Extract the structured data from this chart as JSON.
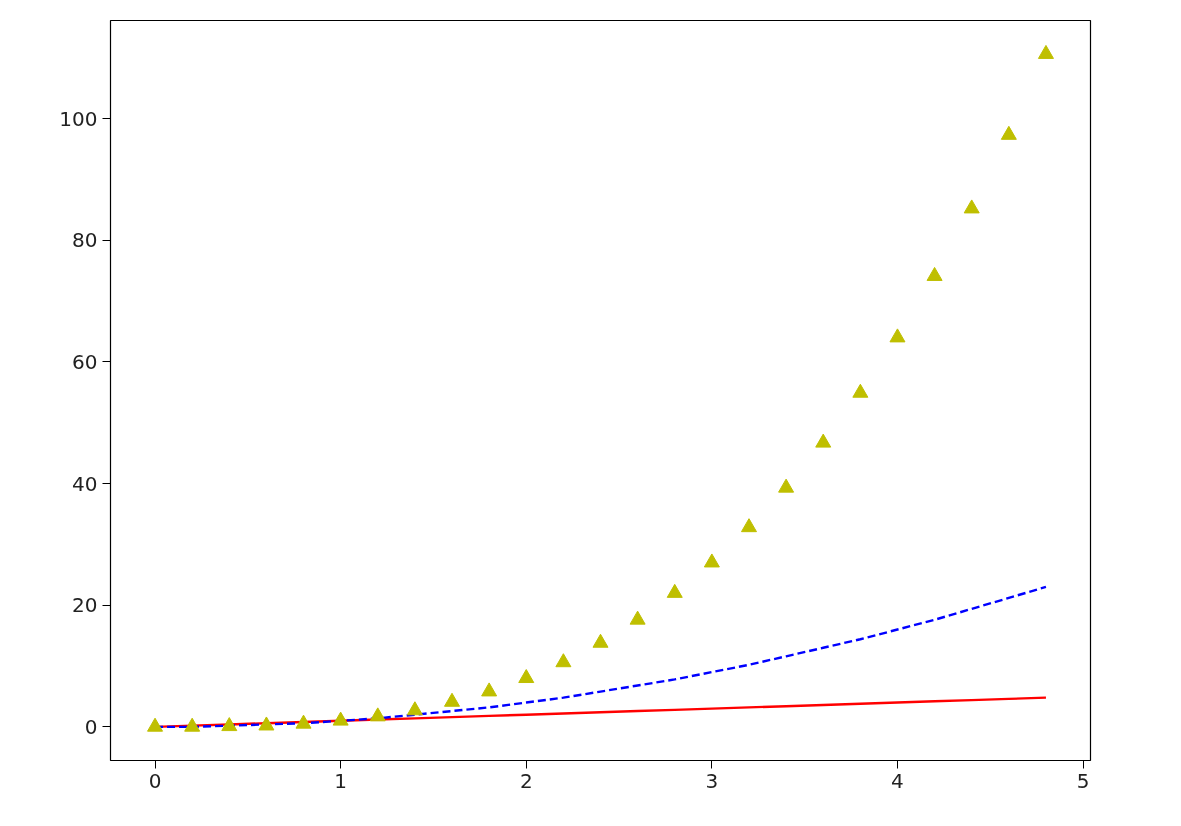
{
  "chart_data": {
    "type": "line",
    "x": [
      0,
      0.2,
      0.4,
      0.6,
      0.8,
      1,
      1.2,
      1.4,
      1.6,
      1.8,
      2,
      2.2,
      2.4,
      2.6,
      2.8,
      3,
      3.2,
      3.4,
      3.6,
      3.8,
      4,
      4.2,
      4.4,
      4.6,
      4.8
    ],
    "series": [
      {
        "color": "#ff0000",
        "line_style": "solid",
        "values": [
          0,
          0.2,
          0.4,
          0.6,
          0.8,
          1,
          1.2,
          1.4,
          1.6,
          1.8,
          2,
          2.2,
          2.4,
          2.6,
          2.8,
          3,
          3.2,
          3.4,
          3.6,
          3.8,
          4,
          4.2,
          4.4,
          4.6,
          4.8
        ]
      },
      {
        "color": "#0000ff",
        "line_style": "dashed",
        "values": [
          0,
          0,
          0.2,
          0.4,
          0.6,
          1,
          1.4,
          2,
          2.6,
          3.2,
          4,
          4.8,
          5.8,
          6.8,
          7.8,
          9,
          10.2,
          11.6,
          13,
          14.4,
          16,
          17.6,
          19.4,
          21.2,
          23
        ]
      },
      {
        "type": "scatter",
        "color": "#bfbf00",
        "marker": "triangle",
        "values": [
          0,
          0,
          0.1,
          0.2,
          0.5,
          1,
          1.7,
          2.7,
          4.1,
          5.8,
          8,
          10.6,
          13.8,
          17.6,
          22,
          27,
          32.8,
          39.3,
          46.7,
          54.9,
          64,
          74.1,
          85.2,
          97.3,
          110.6
        ]
      }
    ],
    "xlim": [
      -0.24,
      5.04
    ],
    "xticks": [
      0,
      1,
      2,
      3,
      4,
      5
    ],
    "ylim": [
      -5.53,
      116.12
    ],
    "yticks": [
      0,
      20,
      40,
      60,
      80,
      100
    ],
    "grid": false
  }
}
